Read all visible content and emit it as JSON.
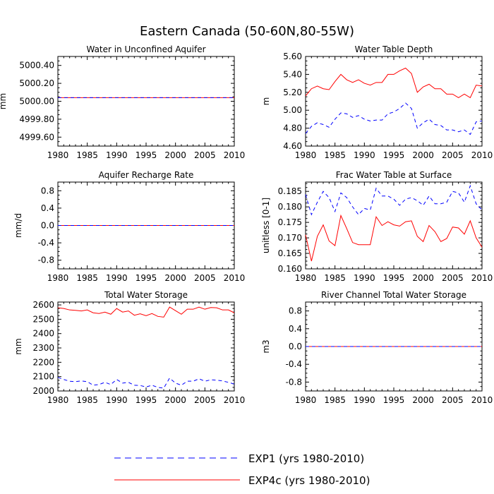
{
  "title": "Eastern Canada (50-60N,80-55W)",
  "legend": [
    {
      "label": "EXP1 (yrs 1980-2010)",
      "color": "#0000ff",
      "dash": "dashed"
    },
    {
      "label": "EXP4c (yrs 1980-2010)",
      "color": "#ff0000",
      "dash": "solid"
    }
  ],
  "chart_data": [
    {
      "type": "line",
      "title": "Water in Unconfined Aquifer",
      "xlabel": "",
      "ylabel": "mm",
      "xlim": [
        1980,
        2010
      ],
      "ylim": [
        4999.5,
        5000.5
      ],
      "xticks": [
        1980,
        1985,
        1990,
        1995,
        2000,
        2005,
        2010
      ],
      "yticks": [
        4999.6,
        4999.8,
        5000.0,
        5000.2,
        5000.4
      ],
      "ytick_labels": [
        "4999.60",
        "4999.80",
        "5000.00",
        "5000.20",
        "5000.40"
      ],
      "x": [
        1980,
        2010
      ],
      "series": [
        {
          "name": "EXP1",
          "values": [
            5000.04,
            5000.04
          ]
        },
        {
          "name": "EXP4c",
          "values": [
            5000.04,
            5000.04
          ]
        }
      ]
    },
    {
      "type": "line",
      "title": "Water Table Depth",
      "xlabel": "",
      "ylabel": "m",
      "xlim": [
        1980,
        2010
      ],
      "ylim": [
        4.6,
        5.6
      ],
      "xticks": [
        1980,
        1985,
        1990,
        1995,
        2000,
        2005,
        2010
      ],
      "yticks": [
        4.6,
        4.8,
        5.0,
        5.2,
        5.4,
        5.6
      ],
      "ytick_labels": [
        "4.60",
        "4.80",
        "5.00",
        "5.20",
        "5.40",
        "5.60"
      ],
      "x": [
        1980,
        1981,
        1982,
        1983,
        1984,
        1985,
        1986,
        1987,
        1988,
        1989,
        1990,
        1991,
        1992,
        1993,
        1994,
        1995,
        1996,
        1997,
        1998,
        1999,
        2000,
        2001,
        2002,
        2003,
        2004,
        2005,
        2006,
        2007,
        2008,
        2009,
        2010
      ],
      "series": [
        {
          "name": "EXP1",
          "values": [
            4.74,
            4.82,
            4.86,
            4.84,
            4.81,
            4.9,
            4.97,
            4.96,
            4.92,
            4.94,
            4.9,
            4.88,
            4.89,
            4.89,
            4.96,
            4.98,
            5.02,
            5.08,
            5.02,
            4.8,
            4.86,
            4.9,
            4.84,
            4.83,
            4.78,
            4.78,
            4.76,
            4.78,
            4.73,
            4.87,
            4.88
          ]
        },
        {
          "name": "EXP4c",
          "values": [
            5.16,
            5.24,
            5.27,
            5.24,
            5.23,
            5.32,
            5.4,
            5.34,
            5.31,
            5.34,
            5.3,
            5.28,
            5.31,
            5.31,
            5.4,
            5.4,
            5.44,
            5.47,
            5.41,
            5.2,
            5.26,
            5.29,
            5.24,
            5.24,
            5.18,
            5.18,
            5.14,
            5.18,
            5.14,
            5.28,
            5.27
          ]
        }
      ]
    },
    {
      "type": "line",
      "title": "Aquifer Recharge Rate",
      "xlabel": "",
      "ylabel": "mm/d",
      "xlim": [
        1980,
        2010
      ],
      "ylim": [
        -1.0,
        1.0
      ],
      "xticks": [
        1980,
        1985,
        1990,
        1995,
        2000,
        2005,
        2010
      ],
      "yticks": [
        -0.8,
        -0.4,
        0.0,
        0.4,
        0.8
      ],
      "ytick_labels": [
        "-0.8",
        "-0.4",
        "0.0",
        "0.4",
        "0.8"
      ],
      "x": [
        1980,
        2010
      ],
      "series": [
        {
          "name": "EXP1",
          "values": [
            0.0,
            0.0
          ]
        },
        {
          "name": "EXP4c",
          "values": [
            0.0,
            0.0
          ]
        }
      ]
    },
    {
      "type": "line",
      "title": "Frac Water Table at Surface",
      "xlabel": "",
      "ylabel": "unitless [0-1]",
      "xlim": [
        1980,
        2010
      ],
      "ylim": [
        0.16,
        0.188
      ],
      "xticks": [
        1980,
        1985,
        1990,
        1995,
        2000,
        2005,
        2010
      ],
      "yticks": [
        0.16,
        0.165,
        0.17,
        0.175,
        0.18,
        0.185
      ],
      "ytick_labels": [
        "0.160",
        "0.165",
        "0.170",
        "0.175",
        "0.180",
        "0.185"
      ],
      "x": [
        1980,
        1981,
        1982,
        1983,
        1984,
        1985,
        1986,
        1987,
        1988,
        1989,
        1990,
        1991,
        1992,
        1993,
        1994,
        1995,
        1996,
        1997,
        1998,
        1999,
        2000,
        2001,
        2002,
        2003,
        2004,
        2005,
        2006,
        2007,
        2008,
        2009,
        2010
      ],
      "series": [
        {
          "name": "EXP1",
          "values": [
            0.184,
            0.1775,
            0.1815,
            0.185,
            0.183,
            0.1785,
            0.1845,
            0.183,
            0.18,
            0.1775,
            0.1795,
            0.179,
            0.186,
            0.1835,
            0.1835,
            0.1825,
            0.1805,
            0.1825,
            0.183,
            0.182,
            0.1805,
            0.1835,
            0.181,
            0.181,
            0.1815,
            0.185,
            0.1845,
            0.1815,
            0.1868,
            0.181,
            0.179
          ]
        },
        {
          "name": "EXP4c",
          "values": [
            0.171,
            0.1625,
            0.1705,
            0.1742,
            0.169,
            0.1675,
            0.1772,
            0.173,
            0.1685,
            0.1678,
            0.1678,
            0.1678,
            0.1768,
            0.174,
            0.1752,
            0.1742,
            0.1738,
            0.1752,
            0.1755,
            0.1705,
            0.1688,
            0.174,
            0.172,
            0.1688,
            0.1698,
            0.1735,
            0.1732,
            0.1712,
            0.1755,
            0.17,
            0.167
          ]
        }
      ]
    },
    {
      "type": "line",
      "title": "Total Water Storage",
      "xlabel": "",
      "ylabel": "mm",
      "xlim": [
        1980,
        2010
      ],
      "ylim": [
        2000,
        2620
      ],
      "xticks": [
        1980,
        1985,
        1990,
        1995,
        2000,
        2005,
        2010
      ],
      "yticks": [
        2000,
        2100,
        2200,
        2300,
        2400,
        2500,
        2600
      ],
      "ytick_labels": [
        "2000",
        "2100",
        "2200",
        "2300",
        "2400",
        "2500",
        "2600"
      ],
      "x": [
        1980,
        1981,
        1982,
        1983,
        1984,
        1985,
        1986,
        1987,
        1988,
        1989,
        1990,
        1991,
        1992,
        1993,
        1994,
        1995,
        1996,
        1997,
        1998,
        1999,
        2000,
        2001,
        2002,
        2003,
        2004,
        2005,
        2006,
        2007,
        2008,
        2009,
        2010
      ],
      "series": [
        {
          "name": "EXP1",
          "values": [
            2095,
            2080,
            2068,
            2065,
            2070,
            2065,
            2040,
            2045,
            2060,
            2045,
            2080,
            2055,
            2060,
            2040,
            2038,
            2028,
            2040,
            2025,
            2020,
            2090,
            2055,
            2040,
            2068,
            2068,
            2085,
            2068,
            2078,
            2075,
            2070,
            2060,
            2048
          ]
        },
        {
          "name": "EXP4c",
          "values": [
            2580,
            2575,
            2565,
            2562,
            2558,
            2565,
            2545,
            2540,
            2550,
            2535,
            2575,
            2550,
            2558,
            2528,
            2538,
            2525,
            2540,
            2520,
            2515,
            2585,
            2560,
            2535,
            2570,
            2570,
            2585,
            2570,
            2582,
            2580,
            2565,
            2565,
            2545
          ]
        }
      ]
    },
    {
      "type": "line",
      "title": "River Channel Total Water Storage",
      "xlabel": "",
      "ylabel": "m3",
      "xlim": [
        1980,
        2010
      ],
      "ylim": [
        -1.0,
        1.0
      ],
      "xticks": [
        1980,
        1985,
        1990,
        1995,
        2000,
        2005,
        2010
      ],
      "yticks": [
        -0.8,
        -0.4,
        0.0,
        0.4,
        0.8
      ],
      "ytick_labels": [
        "-0.8",
        "-0.4",
        "0.0",
        "0.4",
        "0.8"
      ],
      "x": [
        1980,
        2010
      ],
      "series": [
        {
          "name": "EXP1",
          "values": [
            0.0,
            0.0
          ]
        },
        {
          "name": "EXP4c",
          "values": [
            0.0,
            0.0
          ]
        }
      ]
    }
  ]
}
